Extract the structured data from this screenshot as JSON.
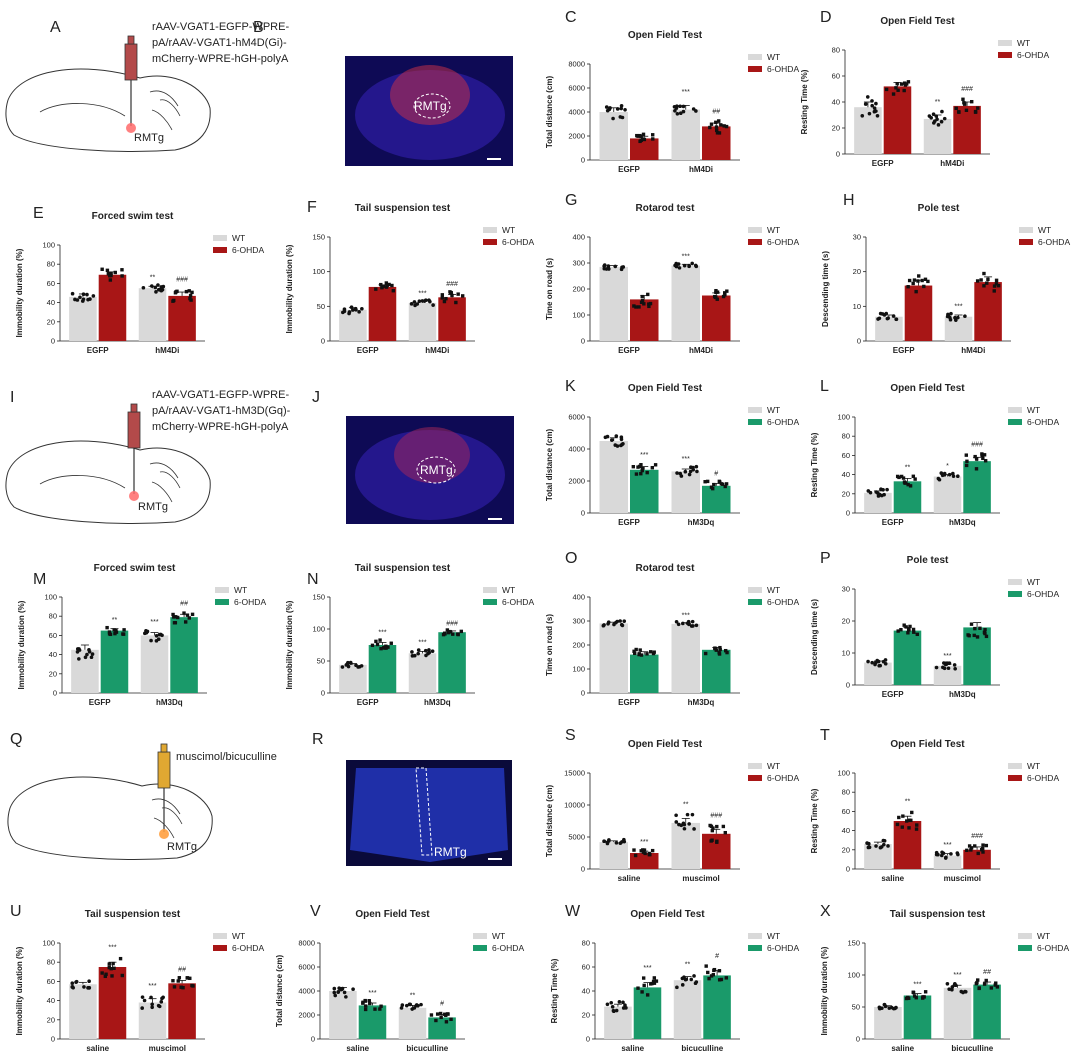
{
  "panels": {
    "A": {
      "label": "A",
      "virus_line1": "rAAV-VGAT1-EGFP-WPRE-",
      "virus_line2": "pA/rAAV-VGAT1-hM4D(Gi)-",
      "virus_line3": "mCherry-WPRE-hGH-polyA",
      "region": "RMTg"
    },
    "B": {
      "label": "B",
      "region": "RMTg"
    },
    "I": {
      "label": "I",
      "virus_line1": "rAAV-VGAT1-EGFP-WPRE-",
      "virus_line2": "pA/rAAV-VGAT1-hM3D(Gq)-",
      "virus_line3": "mCherry-WPRE-hGH-polyA",
      "region": "RMTg"
    },
    "J": {
      "label": "J",
      "region": "RMTg"
    },
    "Q": {
      "label": "Q",
      "virus_line1": "muscimol/bicuculline",
      "region": "RMTg"
    },
    "R": {
      "label": "R",
      "region": "RMTg"
    }
  },
  "colors": {
    "wt": "#d9d9d9",
    "red": "#a81616",
    "green": "#1a9a6a",
    "dot": "#111111"
  },
  "chart_data": [
    {
      "id": "C",
      "type": "bar",
      "title": "Open Field Test",
      "ylabel": "Total distance (cm)",
      "ylim": [
        0,
        8000
      ],
      "yticks": [
        0,
        2000,
        4000,
        6000,
        8000
      ],
      "categories": [
        "EGFP",
        "hM4Di"
      ],
      "legend": [
        "WT",
        "6-OHDA"
      ],
      "treat_color": "red",
      "series": [
        {
          "name": "WT",
          "values": [
            4000,
            4200
          ],
          "err": [
            350,
            350
          ]
        },
        {
          "name": "6-OHDA",
          "values": [
            1800,
            2800
          ],
          "err": [
            180,
            280
          ]
        }
      ],
      "sig": [
        [
          "",
          "***"
        ],
        [
          "",
          "##"
        ]
      ]
    },
    {
      "id": "D",
      "type": "bar",
      "title": "Open Field Test",
      "ylabel": "Resting Time  (%)",
      "ylim": [
        0,
        80
      ],
      "yticks": [
        0,
        20,
        40,
        60,
        80
      ],
      "categories": [
        "EGFP",
        "hM4Di"
      ],
      "legend": [
        "WT",
        "6-OHDA"
      ],
      "treat_color": "red",
      "series": [
        {
          "name": "WT",
          "values": [
            36,
            27
          ],
          "err": [
            4,
            3
          ]
        },
        {
          "name": "6-OHDA",
          "values": [
            52,
            37
          ],
          "err": [
            3,
            3
          ]
        }
      ],
      "sig": [
        [
          "",
          "**"
        ],
        [
          "",
          "###"
        ]
      ]
    },
    {
      "id": "E",
      "type": "bar",
      "title": "Forced swim test",
      "ylabel": "Immobility duration  (%)",
      "ylim": [
        0,
        100
      ],
      "yticks": [
        0,
        20,
        40,
        60,
        80,
        100
      ],
      "categories": [
        "EGFP",
        "hM4Di"
      ],
      "legend": [
        "WT",
        "6-OHDA"
      ],
      "treat_color": "red",
      "series": [
        {
          "name": "WT",
          "values": [
            46,
            55
          ],
          "err": [
            3,
            2
          ]
        },
        {
          "name": "6-OHDA",
          "values": [
            69,
            47
          ],
          "err": [
            3,
            4
          ]
        }
      ],
      "sig": [
        [
          "",
          "**"
        ],
        [
          "",
          "###"
        ]
      ]
    },
    {
      "id": "F",
      "type": "bar",
      "title": "Tail suspension test",
      "ylabel": "Immobility duration (%)",
      "ylim": [
        0,
        150
      ],
      "yticks": [
        0,
        50,
        100,
        150
      ],
      "categories": [
        "EGFP",
        "hM4Di"
      ],
      "legend": [
        "WT",
        "6-OHDA"
      ],
      "treat_color": "red",
      "series": [
        {
          "name": "WT",
          "values": [
            45,
            55
          ],
          "err": [
            3,
            2
          ]
        },
        {
          "name": "6-OHDA",
          "values": [
            78,
            63
          ],
          "err": [
            3,
            4
          ]
        }
      ],
      "sig": [
        [
          "",
          "***"
        ],
        [
          "",
          "###"
        ]
      ]
    },
    {
      "id": "G",
      "type": "bar",
      "title": "Rotarod test",
      "ylabel": "Time on road (s)",
      "ylim": [
        0,
        400
      ],
      "yticks": [
        0,
        100,
        200,
        300,
        400
      ],
      "categories": [
        "EGFP",
        "hM4Di"
      ],
      "legend": [
        "WT",
        "6-OHDA"
      ],
      "treat_color": "red",
      "series": [
        {
          "name": "WT",
          "values": [
            285,
            290
          ],
          "err": [
            5,
            5
          ]
        },
        {
          "name": "6-OHDA",
          "values": [
            160,
            175
          ],
          "err": [
            15,
            10
          ]
        }
      ],
      "sig": [
        [
          "",
          "***"
        ],
        [
          "",
          ""
        ]
      ]
    },
    {
      "id": "H",
      "type": "bar",
      "title": "Pole test",
      "ylabel": "Descending time (s)",
      "ylim": [
        0,
        30
      ],
      "yticks": [
        0,
        10,
        20,
        30
      ],
      "categories": [
        "EGFP",
        "hM4Di"
      ],
      "legend": [
        "WT",
        "6-OHDA"
      ],
      "treat_color": "red",
      "series": [
        {
          "name": "WT",
          "values": [
            7,
            7
          ],
          "err": [
            0.5,
            0.5
          ]
        },
        {
          "name": "6-OHDA",
          "values": [
            16,
            17
          ],
          "err": [
            1.5,
            1.5
          ]
        }
      ],
      "sig": [
        [
          "",
          "***"
        ],
        [
          "",
          ""
        ]
      ]
    },
    {
      "id": "K",
      "type": "bar",
      "title": "Open Field Test",
      "ylabel": "Total distance (cm)",
      "ylim": [
        0,
        6000
      ],
      "yticks": [
        0,
        2000,
        4000,
        6000
      ],
      "categories": [
        "EGFP",
        "hM3Dq"
      ],
      "legend": [
        "WT",
        "6-OHDA"
      ],
      "treat_color": "green",
      "series": [
        {
          "name": "WT",
          "values": [
            4500,
            2600
          ],
          "err": [
            200,
            150
          ]
        },
        {
          "name": "6-OHDA",
          "values": [
            2700,
            1700
          ],
          "err": [
            200,
            150
          ]
        }
      ],
      "sig": [
        [
          "",
          "***"
        ],
        [
          "***",
          "#"
        ]
      ]
    },
    {
      "id": "L",
      "type": "bar",
      "title": "Open Field Test",
      "ylabel": "Resting Time  (%)",
      "ylim": [
        0,
        100
      ],
      "yticks": [
        0,
        20,
        40,
        60,
        80,
        100
      ],
      "categories": [
        "EGFP",
        "hM3Dq"
      ],
      "legend": [
        "WT",
        "6-OHDA"
      ],
      "treat_color": "green",
      "series": [
        {
          "name": "WT",
          "values": [
            21,
            38
          ],
          "err": [
            2,
            2
          ]
        },
        {
          "name": "6-OHDA",
          "values": [
            33,
            54
          ],
          "err": [
            3,
            4
          ]
        }
      ],
      "sig": [
        [
          "",
          "*"
        ],
        [
          "**",
          "###"
        ]
      ]
    },
    {
      "id": "M",
      "type": "bar",
      "title": "Forced swim test",
      "ylabel": "Immobility duration (%)",
      "ylim": [
        0,
        100
      ],
      "yticks": [
        0,
        20,
        40,
        60,
        80,
        100
      ],
      "categories": [
        "EGFP",
        "hM3Dq"
      ],
      "legend": [
        "WT",
        "6-OHDA"
      ],
      "treat_color": "green",
      "series": [
        {
          "name": "WT",
          "values": [
            45,
            60
          ],
          "err": [
            5,
            3
          ]
        },
        {
          "name": "6-OHDA",
          "values": [
            65,
            79
          ],
          "err": [
            2,
            3
          ]
        }
      ],
      "sig": [
        [
          "",
          "***"
        ],
        [
          "**",
          "##"
        ]
      ]
    },
    {
      "id": "N",
      "type": "bar",
      "title": "Tail suspension test",
      "ylabel": "Immobility duration (%)",
      "ylim": [
        0,
        150
      ],
      "yticks": [
        0,
        50,
        100,
        150
      ],
      "categories": [
        "EGFP",
        "hM3Dq"
      ],
      "legend": [
        "WT",
        "6-OHDA"
      ],
      "treat_color": "green",
      "series": [
        {
          "name": "WT",
          "values": [
            44,
            62
          ],
          "err": [
            2,
            3
          ]
        },
        {
          "name": "6-OHDA",
          "values": [
            75,
            95
          ],
          "err": [
            4,
            2
          ]
        }
      ],
      "sig": [
        [
          "",
          "***"
        ],
        [
          "***",
          "###"
        ]
      ]
    },
    {
      "id": "O",
      "type": "bar",
      "title": "Rotarod test",
      "ylabel": "Time on road (s)",
      "ylim": [
        0,
        400
      ],
      "yticks": [
        0,
        100,
        200,
        300,
        400
      ],
      "categories": [
        "EGFP",
        "hM3Dq"
      ],
      "legend": [
        "WT",
        "6-OHDA"
      ],
      "treat_color": "green",
      "series": [
        {
          "name": "WT",
          "values": [
            290,
            288
          ],
          "err": [
            5,
            5
          ]
        },
        {
          "name": "6-OHDA",
          "values": [
            160,
            180
          ],
          "err": [
            12,
            10
          ]
        }
      ],
      "sig": [
        [
          "",
          "***"
        ],
        [
          "",
          ""
        ]
      ]
    },
    {
      "id": "P",
      "type": "bar",
      "title": "Pole test",
      "ylabel": "Descending time (s)",
      "ylim": [
        0,
        30
      ],
      "yticks": [
        0,
        10,
        20,
        30
      ],
      "categories": [
        "EGFP",
        "hM3Dq"
      ],
      "legend": [
        "WT",
        "6-OHDA"
      ],
      "treat_color": "green",
      "series": [
        {
          "name": "WT",
          "values": [
            7,
            6
          ],
          "err": [
            0.5,
            0.5
          ]
        },
        {
          "name": "6-OHDA",
          "values": [
            17,
            18
          ],
          "err": [
            1,
            1.5
          ]
        }
      ],
      "sig": [
        [
          "",
          "***"
        ],
        [
          "",
          ""
        ]
      ]
    },
    {
      "id": "S",
      "type": "bar",
      "title": "Open Field Test",
      "ylabel": "Total distance (cm)",
      "ylim": [
        0,
        15000
      ],
      "yticks": [
        0,
        5000,
        10000,
        15000
      ],
      "categories": [
        "saline",
        "muscimol"
      ],
      "legend": [
        "WT",
        "6-OHDA"
      ],
      "treat_color": "red",
      "series": [
        {
          "name": "WT",
          "values": [
            4200,
            7200
          ],
          "err": [
            200,
            700
          ]
        },
        {
          "name": "6-OHDA",
          "values": [
            2500,
            5500
          ],
          "err": [
            300,
            700
          ]
        }
      ],
      "sig": [
        [
          "",
          "**"
        ],
        [
          "***",
          "###"
        ]
      ]
    },
    {
      "id": "T",
      "type": "bar",
      "title": "Open Field Test",
      "ylabel": "Resting Time (%)",
      "ylim": [
        0,
        100
      ],
      "yticks": [
        0,
        20,
        40,
        60,
        80,
        100
      ],
      "categories": [
        "saline",
        "muscimol"
      ],
      "legend": [
        "WT",
        "6-OHDA"
      ],
      "treat_color": "red",
      "series": [
        {
          "name": "WT",
          "values": [
            26,
            14
          ],
          "err": [
            2,
            2
          ]
        },
        {
          "name": "6-OHDA",
          "values": [
            50,
            20
          ],
          "err": [
            5,
            3
          ]
        }
      ],
      "sig": [
        [
          "",
          "***"
        ],
        [
          "**",
          "###"
        ]
      ]
    },
    {
      "id": "U",
      "type": "bar",
      "title": "Tail suspension test",
      "ylabel": "Immobility duration (%)",
      "ylim": [
        0,
        100
      ],
      "yticks": [
        0,
        20,
        40,
        60,
        80,
        100
      ],
      "categories": [
        "saline",
        "muscimol"
      ],
      "legend": [
        "WT",
        "6-OHDA"
      ],
      "treat_color": "red",
      "series": [
        {
          "name": "WT",
          "values": [
            57,
            38
          ],
          "err": [
            2,
            4
          ]
        },
        {
          "name": "6-OHDA",
          "values": [
            75,
            58
          ],
          "err": [
            5,
            3
          ]
        }
      ],
      "sig": [
        [
          "",
          "***"
        ],
        [
          "***",
          "##"
        ]
      ]
    },
    {
      "id": "V",
      "type": "bar",
      "title": "Open Field Test",
      "ylabel": "Total  distance (cm)",
      "ylim": [
        0,
        8000
      ],
      "yticks": [
        0,
        2000,
        4000,
        6000,
        8000
      ],
      "categories": [
        "saline",
        "bicuculline"
      ],
      "legend": [
        "WT",
        "6-OHDA"
      ],
      "treat_color": "green",
      "series": [
        {
          "name": "WT",
          "values": [
            4000,
            2600
          ],
          "err": [
            300,
            200
          ]
        },
        {
          "name": "6-OHDA",
          "values": [
            2800,
            1800
          ],
          "err": [
            200,
            250
          ]
        }
      ],
      "sig": [
        [
          "",
          "**"
        ],
        [
          "***",
          "#"
        ]
      ]
    },
    {
      "id": "W",
      "type": "bar",
      "title": "Open Field Test",
      "ylabel": "Resting Time  (%)",
      "ylim": [
        0,
        80
      ],
      "yticks": [
        0,
        20,
        40,
        60,
        80
      ],
      "categories": [
        "saline",
        "bicuculline"
      ],
      "legend": [
        "WT",
        "6-OHDA"
      ],
      "treat_color": "green",
      "series": [
        {
          "name": "WT",
          "values": [
            27,
            49
          ],
          "err": [
            2,
            3
          ]
        },
        {
          "name": "6-OHDA",
          "values": [
            43,
            53
          ],
          "err": [
            4,
            4
          ]
        }
      ],
      "sig": [
        [
          "",
          "**"
        ],
        [
          "***",
          "#"
        ]
      ]
    },
    {
      "id": "X",
      "type": "bar",
      "title": "Tail suspension test",
      "ylabel": "Immobility duration (%)",
      "ylim": [
        0,
        150
      ],
      "yticks": [
        0,
        50,
        100,
        150
      ],
      "categories": [
        "saline",
        "bicuculline"
      ],
      "legend": [
        "WT",
        "6-OHDA"
      ],
      "treat_color": "green",
      "series": [
        {
          "name": "WT",
          "values": [
            50,
            80
          ],
          "err": [
            2,
            4
          ]
        },
        {
          "name": "6-OHDA",
          "values": [
            68,
            85
          ],
          "err": [
            3,
            4
          ]
        }
      ],
      "sig": [
        [
          "",
          "***"
        ],
        [
          "***",
          "##"
        ]
      ]
    }
  ]
}
